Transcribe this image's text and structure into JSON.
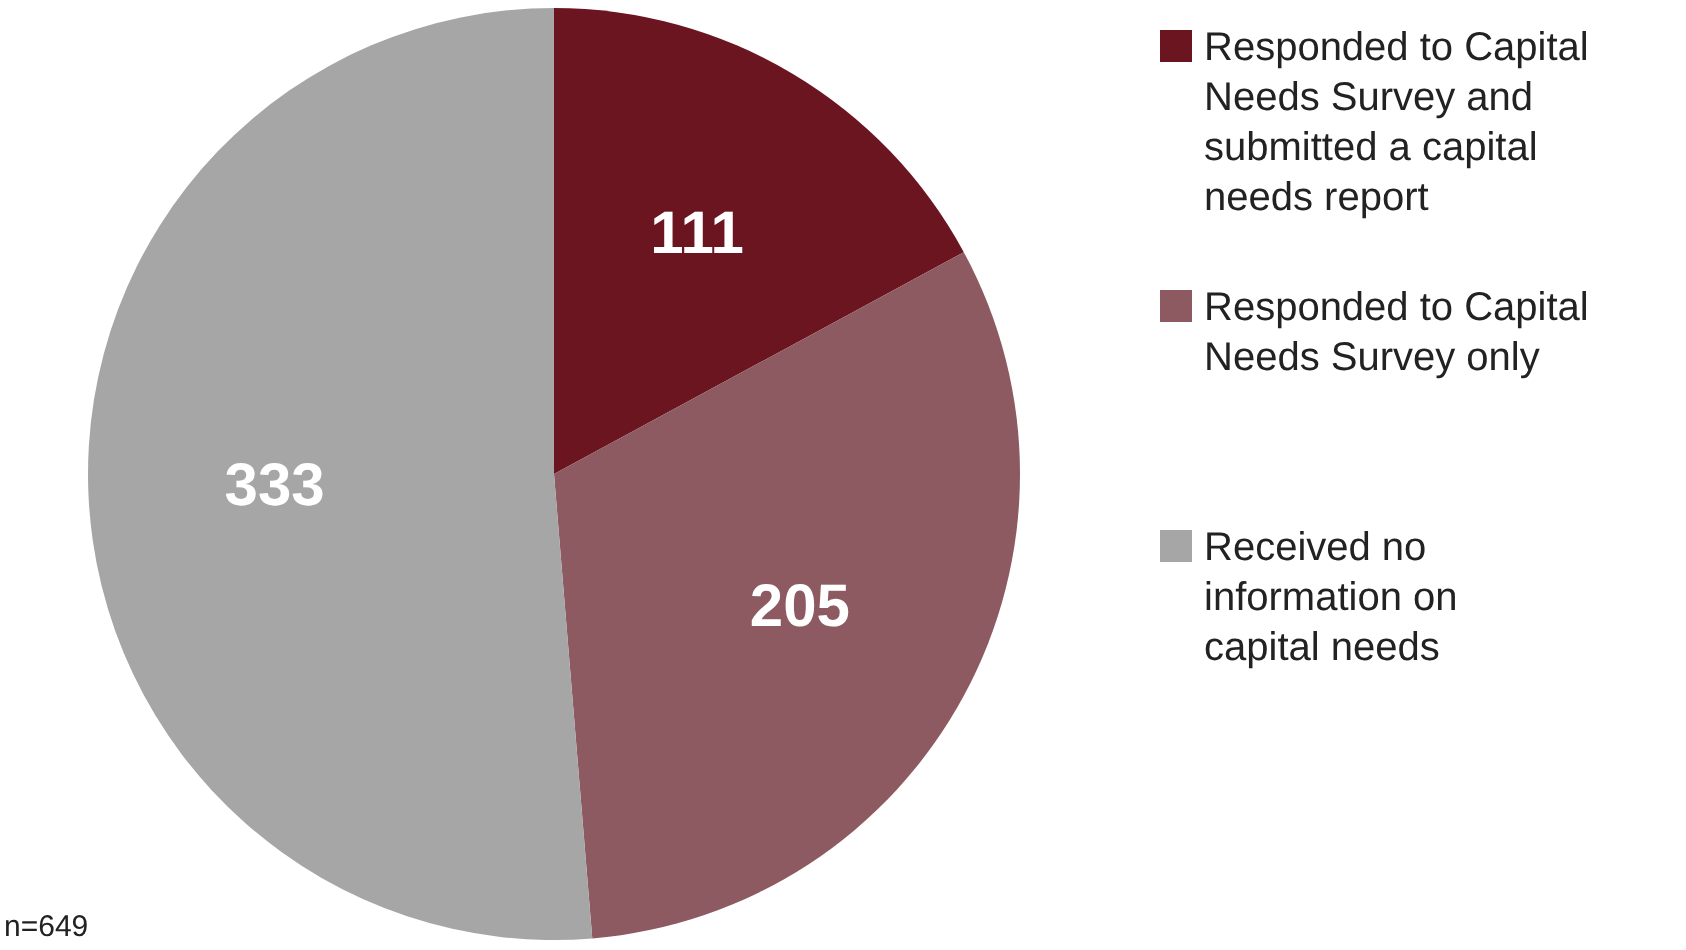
{
  "chart_data": {
    "type": "pie",
    "categories": [
      "Responded to Capital Needs Survey and submitted a capital needs report",
      "Responded to Capital Needs Survey only",
      "Received no information on capital needs"
    ],
    "values": [
      111,
      205,
      333
    ],
    "colors": [
      "#6b1520",
      "#8c5a60",
      "#a6a6a6"
    ],
    "data_labels": true,
    "legend": "right",
    "annotations": [
      "n=649"
    ]
  }
}
